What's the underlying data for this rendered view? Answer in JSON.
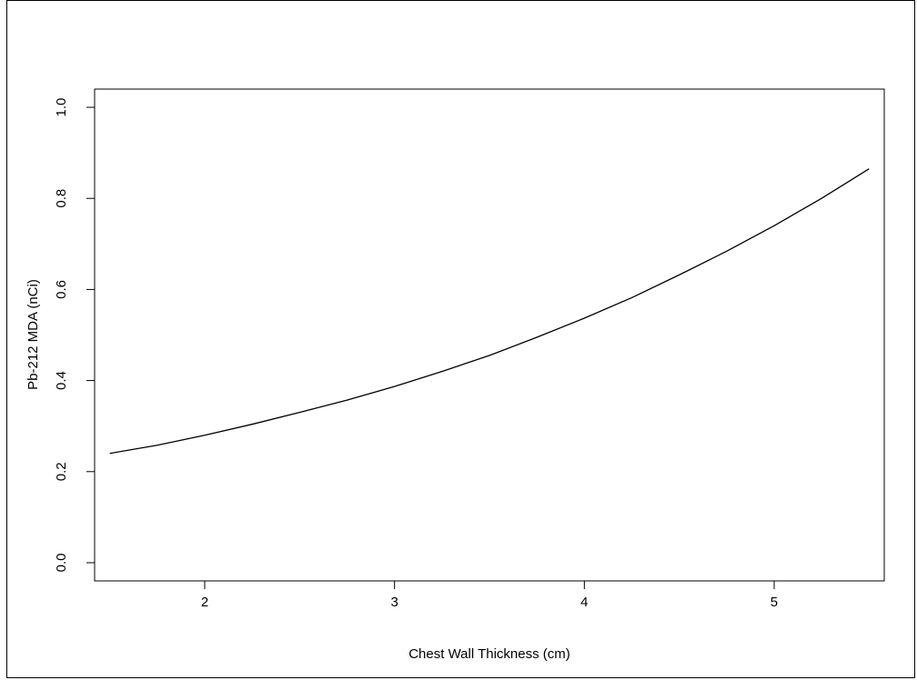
{
  "chart_data": {
    "type": "line",
    "xlabel": "Chest Wall Thickness (cm)",
    "ylabel": "Pb-212 MDA (nCi)",
    "xlim": [
      1.42,
      5.58
    ],
    "ylim": [
      -0.04,
      1.04
    ],
    "xticks": [
      2,
      3,
      4,
      5
    ],
    "yticks": [
      0.0,
      0.2,
      0.4,
      0.6,
      0.8,
      1.0
    ],
    "xtick_labels": [
      "2",
      "3",
      "4",
      "5"
    ],
    "ytick_labels": [
      "0.0",
      "0.2",
      "0.4",
      "0.6",
      "0.8",
      "1.0"
    ],
    "grid": false,
    "color": "#000000",
    "series": [
      {
        "x": [
          1.5,
          1.75,
          2.0,
          2.25,
          2.5,
          2.75,
          3.0,
          3.25,
          3.5,
          3.75,
          4.0,
          4.25,
          4.5,
          4.75,
          5.0,
          5.25,
          5.5
        ],
        "y": [
          0.24,
          0.258,
          0.28,
          0.304,
          0.33,
          0.357,
          0.387,
          0.42,
          0.455,
          0.495,
          0.537,
          0.582,
          0.632,
          0.684,
          0.74,
          0.8,
          0.865
        ]
      }
    ]
  }
}
